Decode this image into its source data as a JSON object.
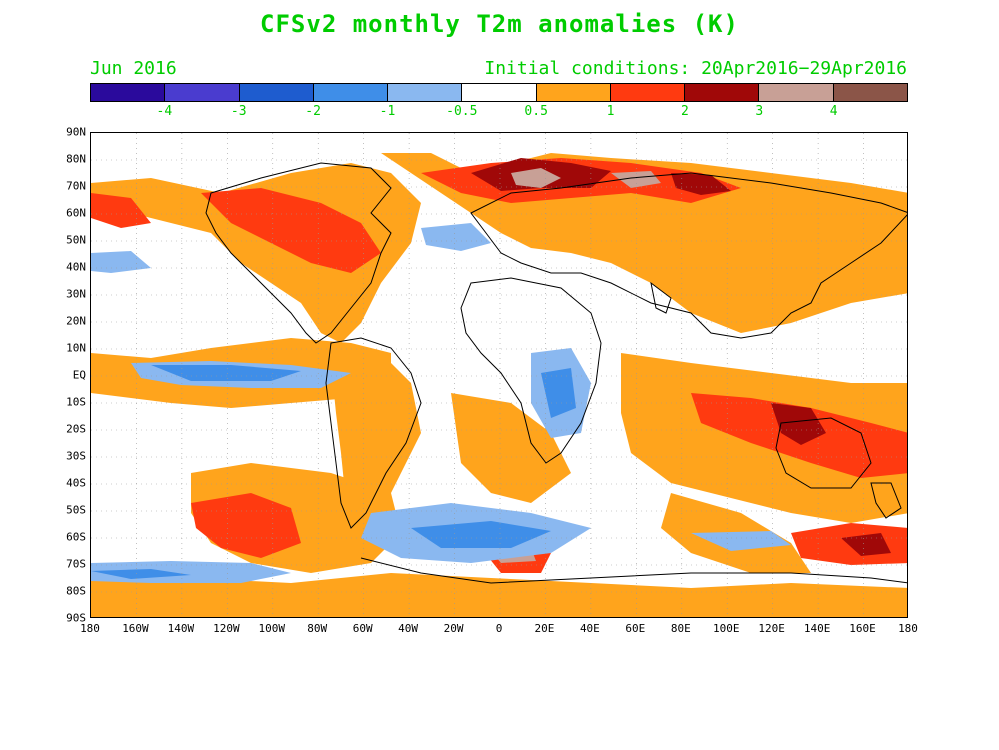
{
  "title": "CFSv2 monthly T2m anomalies (K)",
  "period_label": "Jun 2016",
  "initial_conditions": "Initial conditions: 20Apr2016−29Apr2016",
  "colorbar": {
    "colors": [
      "#2a0a9c",
      "#4a3ccf",
      "#1e5ccf",
      "#3f8ee8",
      "#8ab8f0",
      "#ffffff",
      "#ffa41c",
      "#ff3a10",
      "#a00808",
      "#c8a096",
      "#8b5548"
    ],
    "labels": [
      "-4",
      "-3",
      "-2",
      "-1",
      "-0.5",
      "0.5",
      "1",
      "2",
      "3",
      "4"
    ]
  },
  "lat_labels": [
    "90N",
    "80N",
    "70N",
    "60N",
    "50N",
    "40N",
    "30N",
    "20N",
    "10N",
    "EQ",
    "10S",
    "20S",
    "30S",
    "40S",
    "50S",
    "60S",
    "70S",
    "80S",
    "90S"
  ],
  "lon_labels": [
    "180",
    "160W",
    "140W",
    "120W",
    "100W",
    "80W",
    "60W",
    "40W",
    "20W",
    "0",
    "20E",
    "40E",
    "60E",
    "80E",
    "100E",
    "120E",
    "140E",
    "160E",
    "180"
  ]
}
